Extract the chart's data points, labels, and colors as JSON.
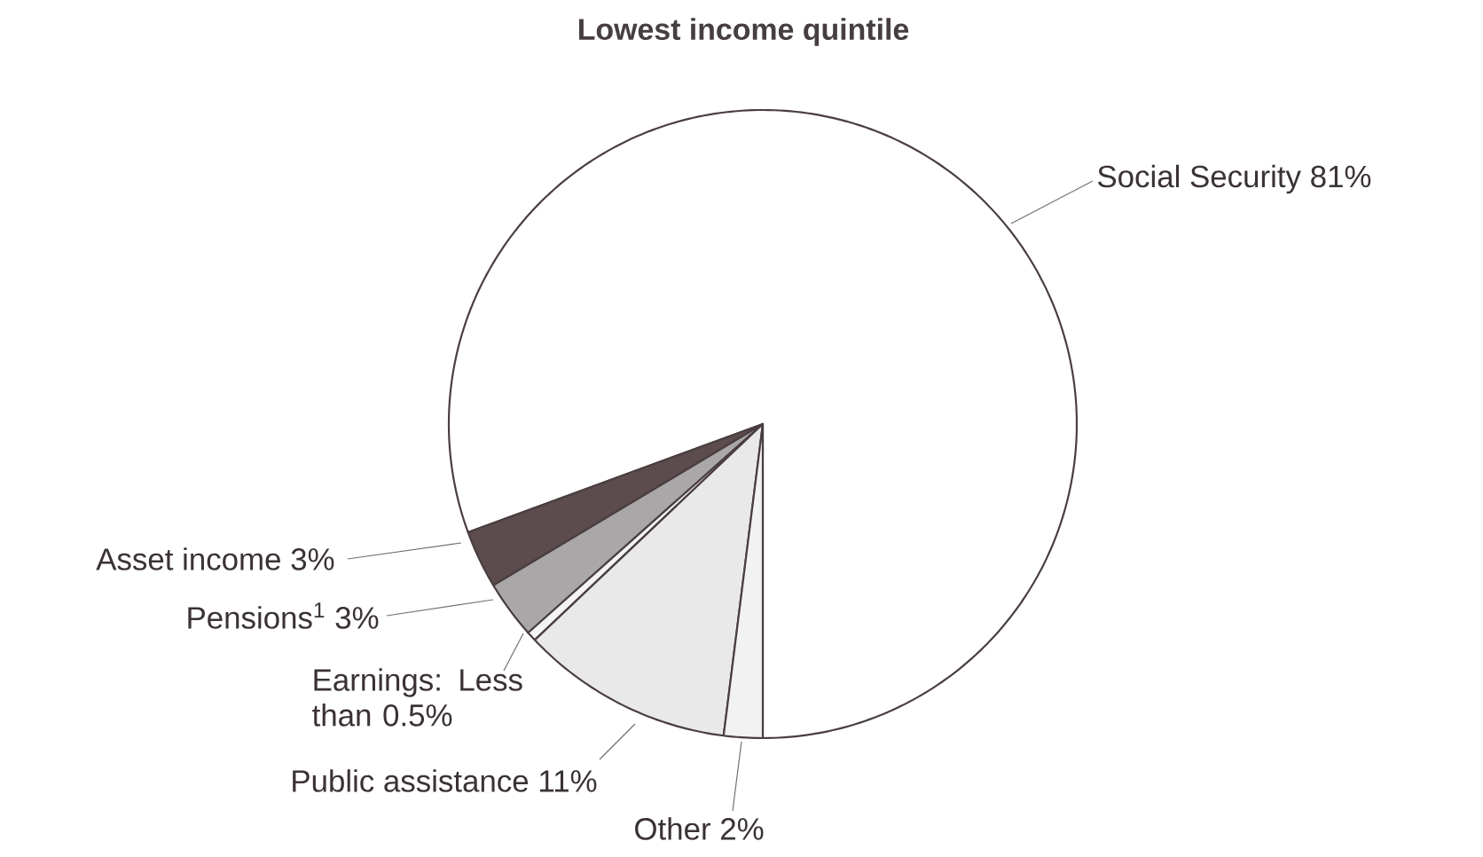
{
  "chart_data": {
    "type": "pie",
    "title": "Lowest income quintile",
    "categories": [
      "Social Security",
      "Asset income",
      "Pensions$^{1}$",
      "Earnings: Less than 0.5%",
      "Public assistance",
      "Other"
    ],
    "values": [
      81,
      3,
      3,
      0.5,
      11,
      2
    ],
    "value_labels": [
      "81%",
      "3%",
      "3%",
      null,
      "11%",
      "2%"
    ],
    "colors": [
      "#ffffff",
      "#5c4c4e",
      "#a9a7a8",
      "#f4f4f4",
      "#e9e9e9",
      "#f2f2f2"
    ]
  }
}
